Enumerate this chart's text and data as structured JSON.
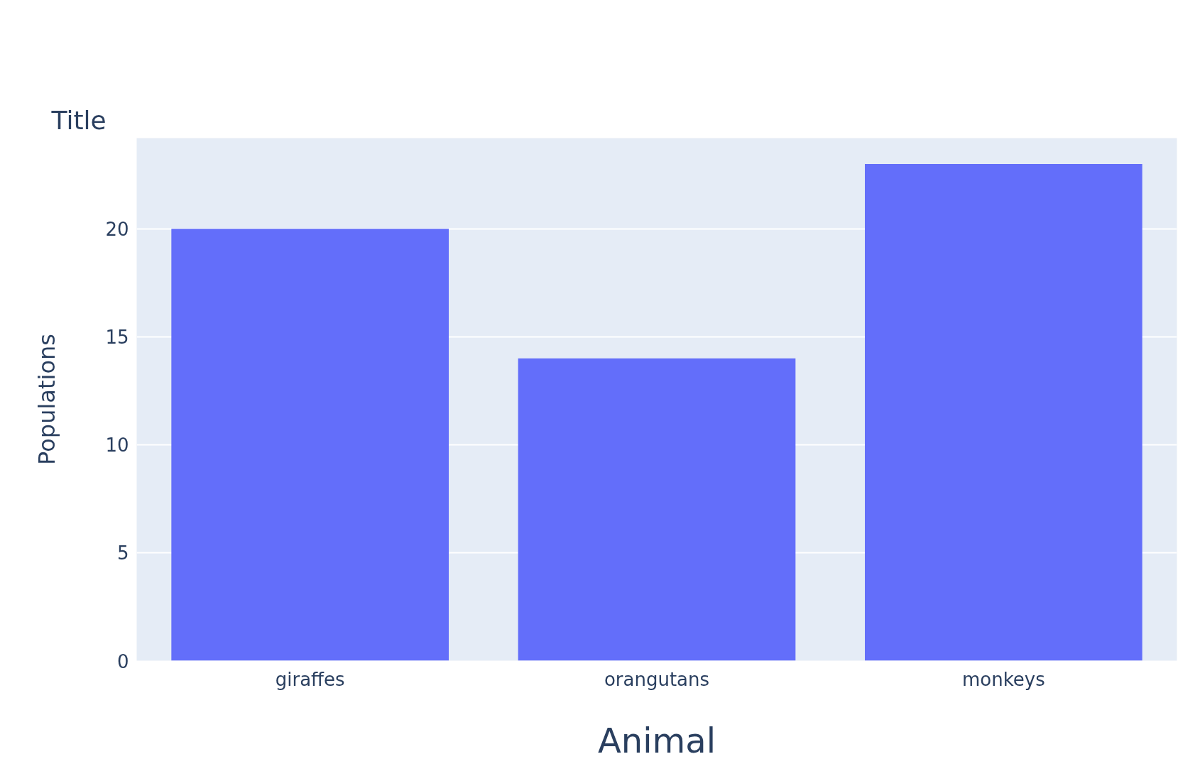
{
  "chart_data": {
    "type": "bar",
    "title": "Title",
    "xlabel": "Animal",
    "ylabel": "Populations",
    "categories": [
      "giraffes",
      "orangutans",
      "monkeys"
    ],
    "values": [
      20,
      14,
      23
    ],
    "color": "#636efa",
    "ylim": [
      0,
      24.2
    ],
    "yticks": [
      0,
      5,
      10,
      15,
      20
    ],
    "grid": "y"
  }
}
